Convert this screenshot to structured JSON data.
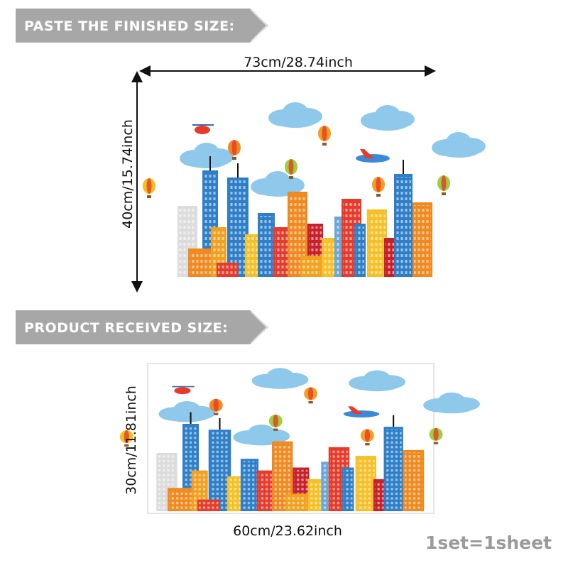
{
  "banners": {
    "finished": "PASTE THE FINISHED SIZE:",
    "received": "PRODUCT RECEIVED SIZE:"
  },
  "finished_size": {
    "width": "73cm/28.74inch",
    "height": "40cm/15.74inch"
  },
  "received_size": {
    "height": "30cm/11.81inch",
    "width": "60cm/23.62inch"
  },
  "note": "1set=1sheet"
}
